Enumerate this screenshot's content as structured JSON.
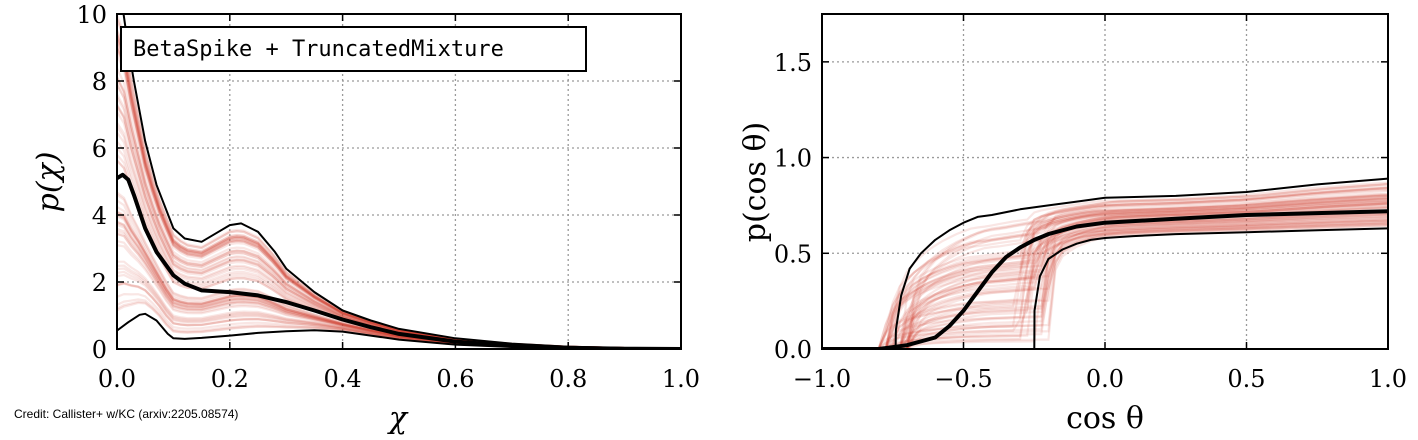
{
  "credit": "Credit: Callister+ w/KC (arxiv:2205.08574)",
  "colors": {
    "band": "#d23a2e",
    "line": "#000000",
    "grid": "#9a9a9a"
  },
  "chart_data": [
    {
      "type": "line",
      "legend": "BetaSpike + TruncatedMixture",
      "legend_placement": "top-left",
      "xlabel": "χ",
      "ylabel": "p(χ)",
      "xlim": [
        0.0,
        1.0
      ],
      "ylim": [
        0,
        10
      ],
      "xticks": [
        0.0,
        0.2,
        0.4,
        0.6,
        0.8,
        1.0
      ],
      "xtick_labels": [
        "0.0",
        "0.2",
        "0.4",
        "0.6",
        "0.8",
        "1.0"
      ],
      "yticks": [
        0,
        2,
        4,
        6,
        8,
        10
      ],
      "ytick_labels": [
        "0",
        "2",
        "4",
        "6",
        "8",
        "10"
      ],
      "grid": true,
      "series": [
        {
          "role": "median",
          "x": [
            0.0,
            0.01,
            0.02,
            0.03,
            0.05,
            0.07,
            0.1,
            0.12,
            0.15,
            0.2,
            0.25,
            0.3,
            0.35,
            0.4,
            0.45,
            0.5,
            0.6,
            0.7,
            0.8,
            0.9,
            1.0
          ],
          "y": [
            5.1,
            5.2,
            5.05,
            4.6,
            3.6,
            2.9,
            2.2,
            1.95,
            1.75,
            1.7,
            1.6,
            1.4,
            1.15,
            0.88,
            0.65,
            0.45,
            0.22,
            0.1,
            0.04,
            0.01,
            0.0
          ]
        },
        {
          "role": "upper-90",
          "x": [
            0.0,
            0.01,
            0.02,
            0.03,
            0.05,
            0.07,
            0.1,
            0.12,
            0.15,
            0.18,
            0.2,
            0.22,
            0.25,
            0.28,
            0.3,
            0.35,
            0.4,
            0.45,
            0.5,
            0.6,
            0.7,
            0.8,
            0.9,
            1.0
          ],
          "y": [
            10.5,
            10.2,
            9.0,
            8.0,
            6.2,
            4.9,
            3.6,
            3.3,
            3.2,
            3.5,
            3.7,
            3.75,
            3.5,
            2.9,
            2.4,
            1.7,
            1.15,
            0.85,
            0.6,
            0.32,
            0.16,
            0.07,
            0.03,
            0.0
          ]
        },
        {
          "role": "lower-90",
          "x": [
            0.0,
            0.02,
            0.04,
            0.05,
            0.07,
            0.09,
            0.1,
            0.12,
            0.15,
            0.2,
            0.25,
            0.3,
            0.35,
            0.4,
            0.45,
            0.5,
            0.6,
            0.7,
            0.8,
            0.9,
            1.0
          ],
          "y": [
            0.55,
            0.8,
            1.02,
            1.05,
            0.85,
            0.45,
            0.32,
            0.3,
            0.33,
            0.4,
            0.48,
            0.53,
            0.56,
            0.52,
            0.4,
            0.28,
            0.13,
            0.06,
            0.02,
            0.01,
            0.0
          ]
        }
      ]
    },
    {
      "type": "line",
      "xlabel": "cos θ",
      "ylabel": "p(cos θ)",
      "xlim": [
        -1.0,
        1.0
      ],
      "ylim": [
        0.0,
        1.75
      ],
      "xticks": [
        -1.0,
        -0.5,
        0.0,
        0.5,
        1.0
      ],
      "xtick_labels": [
        "−1.0",
        "−0.5",
        "0.0",
        "0.5",
        "1.0"
      ],
      "yticks": [
        0.0,
        0.5,
        1.0,
        1.5
      ],
      "ytick_labels": [
        "0.0",
        "0.5",
        "1.0",
        "1.5"
      ],
      "grid": true,
      "series": [
        {
          "role": "median",
          "x": [
            -1.0,
            -0.8,
            -0.7,
            -0.6,
            -0.55,
            -0.5,
            -0.45,
            -0.4,
            -0.35,
            -0.3,
            -0.25,
            -0.2,
            -0.1,
            0.0,
            0.25,
            0.5,
            0.75,
            1.0
          ],
          "y": [
            0.0,
            0.0,
            0.02,
            0.06,
            0.12,
            0.2,
            0.3,
            0.4,
            0.48,
            0.53,
            0.57,
            0.6,
            0.64,
            0.66,
            0.68,
            0.7,
            0.71,
            0.72
          ]
        },
        {
          "role": "upper-90",
          "x": [
            -1.0,
            -0.74,
            -0.739,
            -0.72,
            -0.69,
            -0.65,
            -0.6,
            -0.55,
            -0.5,
            -0.45,
            -0.4,
            -0.3,
            -0.2,
            -0.1,
            0.0,
            0.25,
            0.5,
            0.75,
            1.0
          ],
          "y": [
            0.0,
            0.0,
            0.1,
            0.28,
            0.42,
            0.5,
            0.57,
            0.62,
            0.66,
            0.69,
            0.7,
            0.73,
            0.75,
            0.77,
            0.79,
            0.8,
            0.82,
            0.86,
            0.89
          ]
        },
        {
          "role": "lower-90",
          "x": [
            -1.0,
            -0.25,
            -0.249,
            -0.23,
            -0.2,
            -0.15,
            -0.1,
            -0.05,
            0.0,
            0.1,
            0.25,
            0.5,
            0.75,
            1.0
          ],
          "y": [
            0.0,
            0.0,
            0.2,
            0.38,
            0.47,
            0.52,
            0.55,
            0.57,
            0.58,
            0.59,
            0.6,
            0.61,
            0.62,
            0.63
          ]
        }
      ]
    }
  ]
}
